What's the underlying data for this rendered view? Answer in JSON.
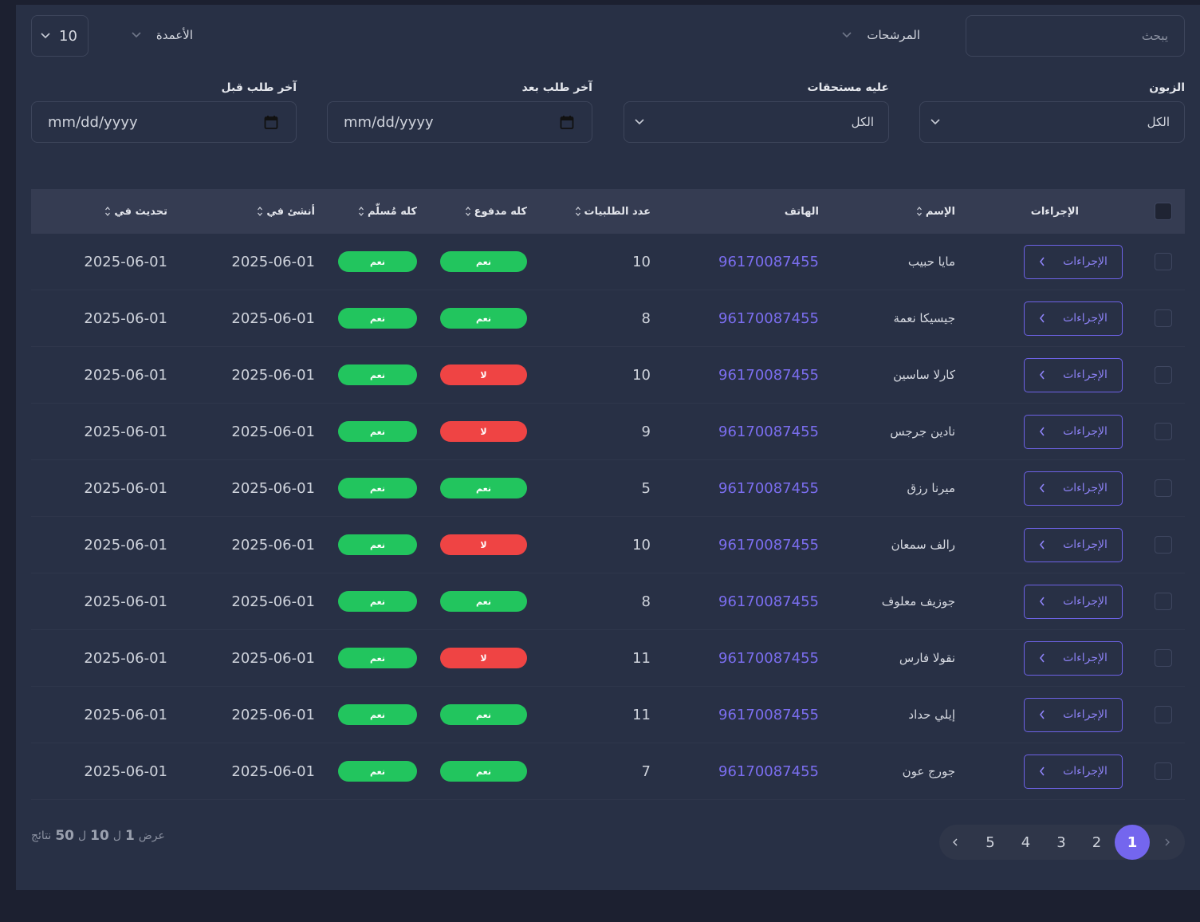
{
  "toolbar": {
    "search_placeholder": "يبحث",
    "filters": "المرشحات",
    "columns": "الأعمدة",
    "per_page": "10"
  },
  "filters": [
    {
      "label": "الزبون",
      "value": "الكل"
    },
    {
      "label": "عليه مستحقات",
      "value": "الكل"
    },
    {
      "label": "آخر طلب بعد",
      "value": "mm/dd/yyyy"
    },
    {
      "label": "آخر طلب قبل",
      "value": "mm/dd/yyyy"
    }
  ],
  "table": {
    "headers": [
      {
        "text": "الإجراءات",
        "sortable": false
      },
      {
        "text": "الإسم",
        "sortable": true
      },
      {
        "text": "الهاتف",
        "sortable": false
      },
      {
        "text": "عدد الطلبيات",
        "sortable": true
      },
      {
        "text": "كله مدفوع",
        "sortable": true
      },
      {
        "text": "كله مُسلّم",
        "sortable": true
      },
      {
        "text": "أنشئ في",
        "sortable": true
      },
      {
        "text": "تحديث في",
        "sortable": true
      }
    ],
    "row_action": "الإجراءات",
    "rows": [
      [
        "مايا حبيب",
        "96170087455",
        "10",
        {
          "text": "نعم",
          "tone": "success"
        },
        {
          "text": "نعم",
          "tone": "success"
        },
        "2025-06-01",
        "2025-06-01"
      ],
      [
        "جيسيكا نعمة",
        "96170087455",
        "8",
        {
          "text": "نعم",
          "tone": "success"
        },
        {
          "text": "نعم",
          "tone": "success"
        },
        "2025-06-01",
        "2025-06-01"
      ],
      [
        "كارلا ساسين",
        "96170087455",
        "10",
        {
          "text": "لا",
          "tone": "danger"
        },
        {
          "text": "نعم",
          "tone": "success"
        },
        "2025-06-01",
        "2025-06-01"
      ],
      [
        "نادين جرجس",
        "96170087455",
        "9",
        {
          "text": "لا",
          "tone": "danger"
        },
        {
          "text": "نعم",
          "tone": "success"
        },
        "2025-06-01",
        "2025-06-01"
      ],
      [
        "ميرنا رزق",
        "96170087455",
        "5",
        {
          "text": "نعم",
          "tone": "success"
        },
        {
          "text": "نعم",
          "tone": "success"
        },
        "2025-06-01",
        "2025-06-01"
      ],
      [
        "رالف سمعان",
        "96170087455",
        "10",
        {
          "text": "لا",
          "tone": "danger"
        },
        {
          "text": "نعم",
          "tone": "success"
        },
        "2025-06-01",
        "2025-06-01"
      ],
      [
        "جوزيف معلوف",
        "96170087455",
        "8",
        {
          "text": "نعم",
          "tone": "success"
        },
        {
          "text": "نعم",
          "tone": "success"
        },
        "2025-06-01",
        "2025-06-01"
      ],
      [
        "نقولا فارس",
        "96170087455",
        "11",
        {
          "text": "لا",
          "tone": "danger"
        },
        {
          "text": "نعم",
          "tone": "success"
        },
        "2025-06-01",
        "2025-06-01"
      ],
      [
        "إيلي حداد",
        "96170087455",
        "11",
        {
          "text": "نعم",
          "tone": "success"
        },
        {
          "text": "نعم",
          "tone": "success"
        },
        "2025-06-01",
        "2025-06-01"
      ],
      [
        "جورج عون",
        "96170087455",
        "7",
        {
          "text": "نعم",
          "tone": "success"
        },
        {
          "text": "نعم",
          "tone": "success"
        },
        "2025-06-01",
        "2025-06-01"
      ]
    ]
  },
  "pagination": {
    "summary": [
      "عرض",
      "1",
      "ل",
      "10",
      "ل",
      "50",
      "نتائج"
    ],
    "pages": [
      "1",
      "2",
      "3",
      "4",
      "5"
    ],
    "current": 0
  }
}
